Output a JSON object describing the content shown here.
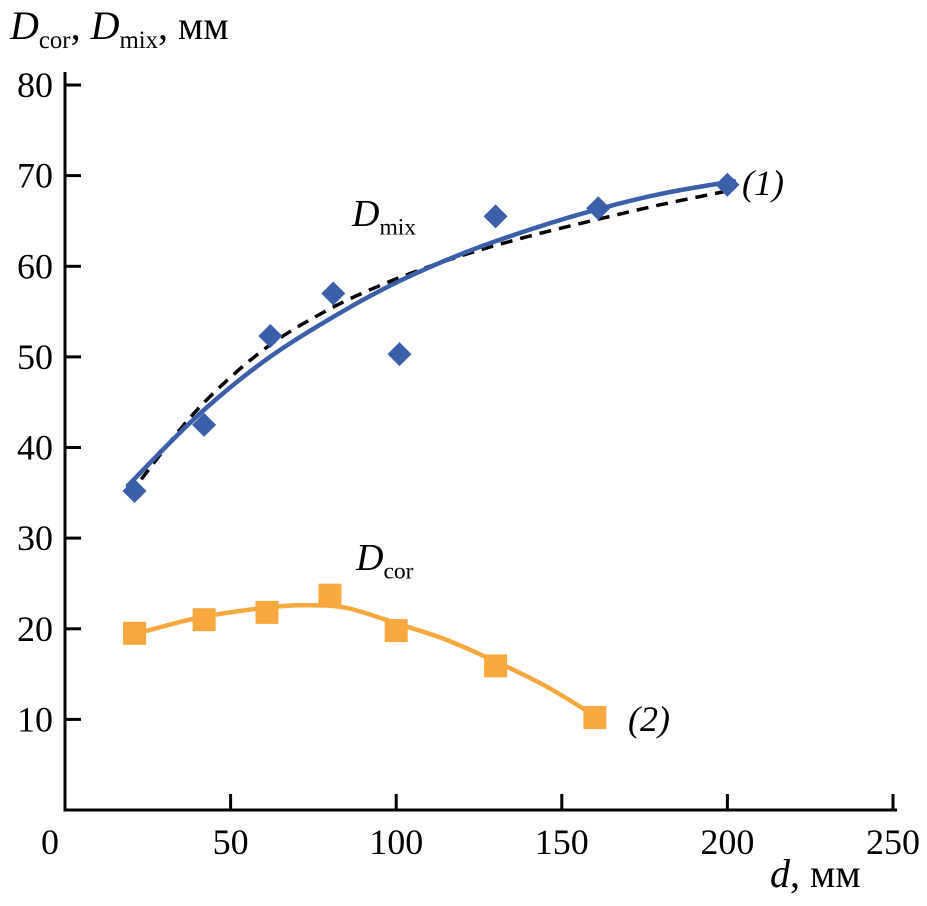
{
  "chart_data": {
    "type": "scatter",
    "title": "",
    "x_axis": {
      "ticks": [
        0,
        50,
        100,
        150,
        200,
        250
      ],
      "lim": [
        0,
        250
      ],
      "grid": false
    },
    "y_axis": {
      "ticks": [
        10,
        20,
        30,
        40,
        50,
        60,
        70,
        80
      ],
      "lim": [
        0,
        80
      ],
      "grid": false
    },
    "series": [
      {
        "name": "Dmix",
        "marker": "diamond",
        "color": "#3b5fa9",
        "points": [
          [
            21,
            35.2
          ],
          [
            42,
            42.5
          ],
          [
            62,
            52.3
          ],
          [
            81,
            57.0
          ],
          [
            101,
            50.3
          ],
          [
            130,
            65.5
          ],
          [
            161,
            66.4
          ],
          [
            200,
            69.0
          ]
        ],
        "fit": {
          "style": "solid",
          "color": "#3b5fa9",
          "points": [
            [
              19,
              35.8
            ],
            [
              40,
              43.5
            ],
            [
              60,
              49.5
            ],
            [
              80,
              54.2
            ],
            [
              100,
              58.2
            ],
            [
              120,
              61.4
            ],
            [
              140,
              64.0
            ],
            [
              160,
              66.2
            ],
            [
              180,
              68.0
            ],
            [
              202,
              69.4
            ]
          ]
        }
      },
      {
        "name": "Dcor",
        "marker": "square",
        "color": "#f7a83e",
        "points": [
          [
            21,
            19.5
          ],
          [
            42,
            21.0
          ],
          [
            61,
            21.8
          ],
          [
            80,
            23.7
          ],
          [
            100,
            19.8
          ],
          [
            130,
            15.9
          ],
          [
            160,
            10.2
          ]
        ],
        "fit": {
          "style": "solid",
          "color": "#f7a83e",
          "points": [
            [
              20,
              19.3
            ],
            [
              40,
              21.2
            ],
            [
              60,
              22.3
            ],
            [
              72,
              22.6
            ],
            [
              85,
              22.3
            ],
            [
              100,
              20.6
            ],
            [
              115,
              18.8
            ],
            [
              130,
              16.4
            ],
            [
              145,
              13.7
            ],
            [
              160,
              10.4
            ]
          ]
        }
      }
    ],
    "extra_fits": [
      {
        "style": "dashed",
        "color": "#000000",
        "points": [
          [
            23,
            36.5
          ],
          [
            40,
            44.2
          ],
          [
            60,
            50.8
          ],
          [
            80,
            55.3
          ],
          [
            100,
            58.6
          ],
          [
            120,
            61.2
          ],
          [
            140,
            63.3
          ],
          [
            160,
            65.1
          ],
          [
            180,
            66.8
          ],
          [
            200,
            68.3
          ]
        ]
      }
    ],
    "y_title": {
      "d1": "D",
      "s1": "cor",
      "c1": ", ",
      "d2": "D",
      "s2": "mix",
      "u": ", мм"
    },
    "x_title": {
      "v": "d",
      "u": ", мм"
    },
    "annotations": {
      "series1_label": {
        "base": "D",
        "sub": "mix"
      },
      "series2_label": {
        "base": "D",
        "sub": "cor"
      },
      "tag1": "(1)",
      "tag2": "(2)"
    }
  }
}
